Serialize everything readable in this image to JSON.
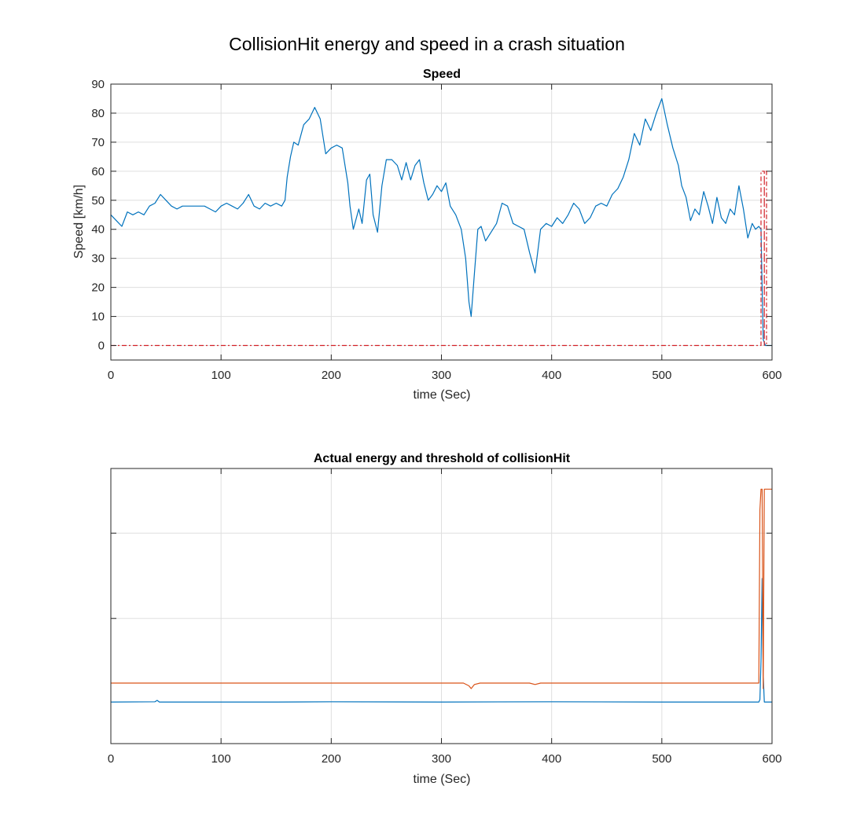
{
  "figure": {
    "title": "CollisionHit energy and speed in a crash situation"
  },
  "chart_data": [
    {
      "type": "line",
      "title": "Speed",
      "xlabel": "time (Sec)",
      "ylabel": "Speed [km/h]",
      "xlim": [
        0,
        600
      ],
      "ylim": [
        -5,
        90
      ],
      "xticks": [
        0,
        100,
        200,
        300,
        400,
        500,
        600
      ],
      "yticks": [
        0,
        10,
        20,
        30,
        40,
        50,
        60,
        70,
        80,
        90
      ],
      "grid": true,
      "series": [
        {
          "color": "#0072BD",
          "style": "solid",
          "points": [
            [
              0,
              45
            ],
            [
              5,
              43
            ],
            [
              10,
              41
            ],
            [
              15,
              46
            ],
            [
              20,
              45
            ],
            [
              25,
              46
            ],
            [
              30,
              45
            ],
            [
              35,
              48
            ],
            [
              40,
              49
            ],
            [
              45,
              52
            ],
            [
              50,
              50
            ],
            [
              55,
              48
            ],
            [
              60,
              47
            ],
            [
              65,
              48
            ],
            [
              75,
              48
            ],
            [
              85,
              48
            ],
            [
              90,
              47
            ],
            [
              95,
              46
            ],
            [
              100,
              48
            ],
            [
              105,
              49
            ],
            [
              110,
              48
            ],
            [
              115,
              47
            ],
            [
              120,
              49
            ],
            [
              125,
              52
            ],
            [
              130,
              48
            ],
            [
              135,
              47
            ],
            [
              140,
              49
            ],
            [
              145,
              48
            ],
            [
              150,
              49
            ],
            [
              155,
              48
            ],
            [
              158,
              50
            ],
            [
              160,
              58
            ],
            [
              163,
              65
            ],
            [
              166,
              70
            ],
            [
              170,
              69
            ],
            [
              175,
              76
            ],
            [
              180,
              78
            ],
            [
              185,
              82
            ],
            [
              190,
              78
            ],
            [
              195,
              66
            ],
            [
              200,
              68
            ],
            [
              205,
              69
            ],
            [
              210,
              68
            ],
            [
              215,
              56
            ],
            [
              217,
              48
            ],
            [
              220,
              40
            ],
            [
              225,
              47
            ],
            [
              228,
              42
            ],
            [
              232,
              57
            ],
            [
              235,
              59
            ],
            [
              238,
              45
            ],
            [
              242,
              39
            ],
            [
              246,
              55
            ],
            [
              250,
              64
            ],
            [
              255,
              64
            ],
            [
              260,
              62
            ],
            [
              264,
              57
            ],
            [
              268,
              63
            ],
            [
              272,
              57
            ],
            [
              276,
              62
            ],
            [
              280,
              64
            ],
            [
              284,
              56
            ],
            [
              288,
              50
            ],
            [
              292,
              52
            ],
            [
              296,
              55
            ],
            [
              300,
              53
            ],
            [
              304,
              56
            ],
            [
              308,
              48
            ],
            [
              313,
              45
            ],
            [
              318,
              40
            ],
            [
              322,
              30
            ],
            [
              325,
              15
            ],
            [
              327,
              10
            ],
            [
              330,
              25
            ],
            [
              333,
              40
            ],
            [
              336,
              41
            ],
            [
              340,
              36
            ],
            [
              345,
              39
            ],
            [
              350,
              42
            ],
            [
              355,
              49
            ],
            [
              360,
              48
            ],
            [
              365,
              42
            ],
            [
              370,
              41
            ],
            [
              375,
              40
            ],
            [
              380,
              32
            ],
            [
              385,
              25
            ],
            [
              390,
              40
            ],
            [
              395,
              42
            ],
            [
              400,
              41
            ],
            [
              405,
              44
            ],
            [
              410,
              42
            ],
            [
              415,
              45
            ],
            [
              420,
              49
            ],
            [
              425,
              47
            ],
            [
              430,
              42
            ],
            [
              435,
              44
            ],
            [
              440,
              48
            ],
            [
              445,
              49
            ],
            [
              450,
              48
            ],
            [
              455,
              52
            ],
            [
              460,
              54
            ],
            [
              465,
              58
            ],
            [
              470,
              64
            ],
            [
              475,
              73
            ],
            [
              480,
              69
            ],
            [
              485,
              78
            ],
            [
              490,
              74
            ],
            [
              495,
              80
            ],
            [
              500,
              85
            ],
            [
              505,
              76
            ],
            [
              510,
              68
            ],
            [
              515,
              62
            ],
            [
              518,
              55
            ],
            [
              522,
              51
            ],
            [
              526,
              43
            ],
            [
              530,
              47
            ],
            [
              534,
              45
            ],
            [
              538,
              53
            ],
            [
              542,
              48
            ],
            [
              546,
              42
            ],
            [
              550,
              51
            ],
            [
              554,
              44
            ],
            [
              558,
              42
            ],
            [
              562,
              47
            ],
            [
              566,
              45
            ],
            [
              570,
              55
            ],
            [
              574,
              47
            ],
            [
              578,
              37
            ],
            [
              582,
              42
            ],
            [
              585,
              40
            ],
            [
              588,
              41
            ],
            [
              590,
              40
            ],
            [
              591,
              20
            ],
            [
              592,
              2
            ],
            [
              594,
              0
            ],
            [
              600,
              0
            ]
          ]
        },
        {
          "color": "#D22027",
          "style": "dashdot",
          "points": [
            [
              0,
              0
            ],
            [
              590,
              0
            ],
            [
              590,
              60
            ],
            [
              593,
              60
            ],
            [
              593,
              0
            ],
            [
              593,
              60
            ],
            [
              595,
              60
            ],
            [
              595,
              0
            ]
          ]
        }
      ]
    },
    {
      "type": "line",
      "title": "Actual energy and threshold of collisionHit",
      "xlabel": "time (Sec)",
      "ylabel": "",
      "xlim": [
        0,
        600
      ],
      "ylim": [
        0,
        1
      ],
      "xticks": [
        0,
        100,
        200,
        300,
        400,
        500,
        600
      ],
      "yticks": [
        0.455,
        0.765
      ],
      "grid": true,
      "series": [
        {
          "color": "#0072BD",
          "style": "solid",
          "points": [
            [
              0,
              0.151
            ],
            [
              40,
              0.152
            ],
            [
              42,
              0.157
            ],
            [
              44,
              0.151
            ],
            [
              150,
              0.151
            ],
            [
              200,
              0.152
            ],
            [
              300,
              0.151
            ],
            [
              400,
              0.152
            ],
            [
              500,
              0.151
            ],
            [
              588,
              0.151
            ],
            [
              589,
              0.16
            ],
            [
              590,
              0.3
            ],
            [
              591,
              0.6
            ],
            [
              592,
              0.25
            ],
            [
              593,
              0.151
            ],
            [
              600,
              0.151
            ]
          ]
        },
        {
          "color": "#D95319",
          "style": "solid",
          "points": [
            [
              0,
              0.22
            ],
            [
              200,
              0.22
            ],
            [
              320,
              0.22
            ],
            [
              325,
              0.21
            ],
            [
              327,
              0.2
            ],
            [
              330,
              0.215
            ],
            [
              335,
              0.22
            ],
            [
              380,
              0.22
            ],
            [
              385,
              0.215
            ],
            [
              390,
              0.22
            ],
            [
              500,
              0.22
            ],
            [
              588,
              0.22
            ],
            [
              589,
              0.85
            ],
            [
              590,
              0.925
            ],
            [
              591,
              0.925
            ],
            [
              592,
              0.2
            ],
            [
              593,
              0.925
            ],
            [
              600,
              0.925
            ]
          ]
        }
      ]
    }
  ]
}
